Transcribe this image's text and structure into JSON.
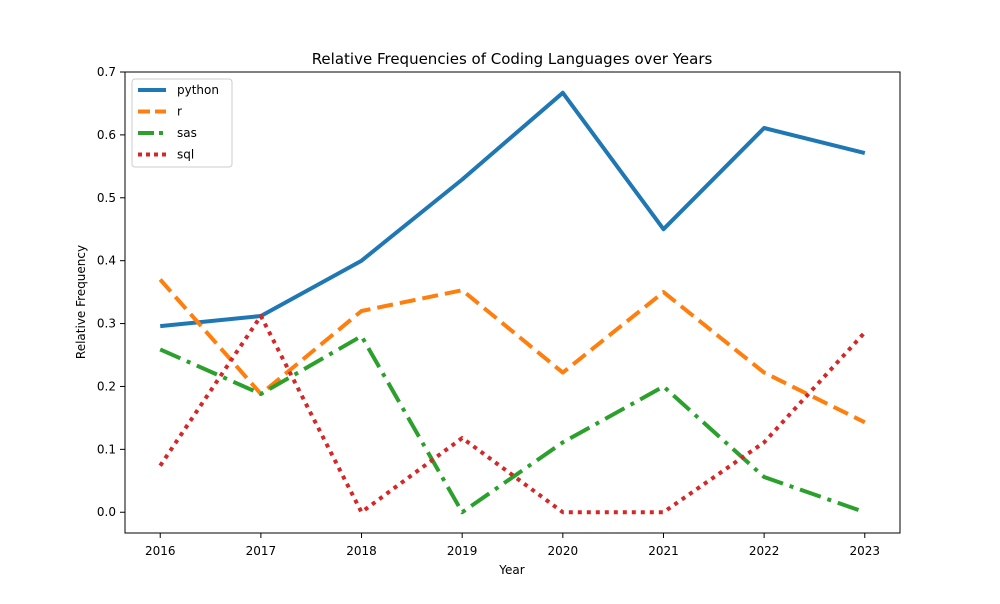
{
  "chart_data": {
    "type": "line",
    "title": "Relative Frequencies of Coding Languages over Years",
    "xlabel": "Year",
    "ylabel": "Relative Frequency",
    "x": [
      2016,
      2017,
      2018,
      2019,
      2020,
      2021,
      2022,
      2023
    ],
    "xlim": [
      2015.65,
      2023.35
    ],
    "ylim": [
      -0.033,
      0.7
    ],
    "yticks": [
      0.0,
      0.1,
      0.2,
      0.3,
      0.4,
      0.5,
      0.6,
      0.7
    ],
    "ytick_labels": [
      "0.0",
      "0.1",
      "0.2",
      "0.3",
      "0.4",
      "0.5",
      "0.6",
      "0.7"
    ],
    "xtick_labels": [
      "2016",
      "2017",
      "2018",
      "2019",
      "2020",
      "2021",
      "2022",
      "2023"
    ],
    "grid": false,
    "legend_position": "top-left",
    "series": [
      {
        "name": "python",
        "color": "#1f77b4",
        "style": "solid",
        "values": [
          0.296,
          0.312,
          0.4,
          0.529,
          0.667,
          0.45,
          0.611,
          0.571
        ]
      },
      {
        "name": "r",
        "color": "#ff7f0e",
        "style": "dashed",
        "values": [
          0.37,
          0.188,
          0.32,
          0.353,
          0.222,
          0.35,
          0.222,
          0.143
        ]
      },
      {
        "name": "sas",
        "color": "#2ca02c",
        "style": "dashdot",
        "values": [
          0.259,
          0.188,
          0.28,
          0.0,
          0.111,
          0.2,
          0.056,
          0.0
        ]
      },
      {
        "name": "sql",
        "color": "#d62728",
        "style": "dotted",
        "values": [
          0.074,
          0.312,
          0.0,
          0.118,
          0.0,
          0.0,
          0.111,
          0.286
        ]
      }
    ]
  }
}
